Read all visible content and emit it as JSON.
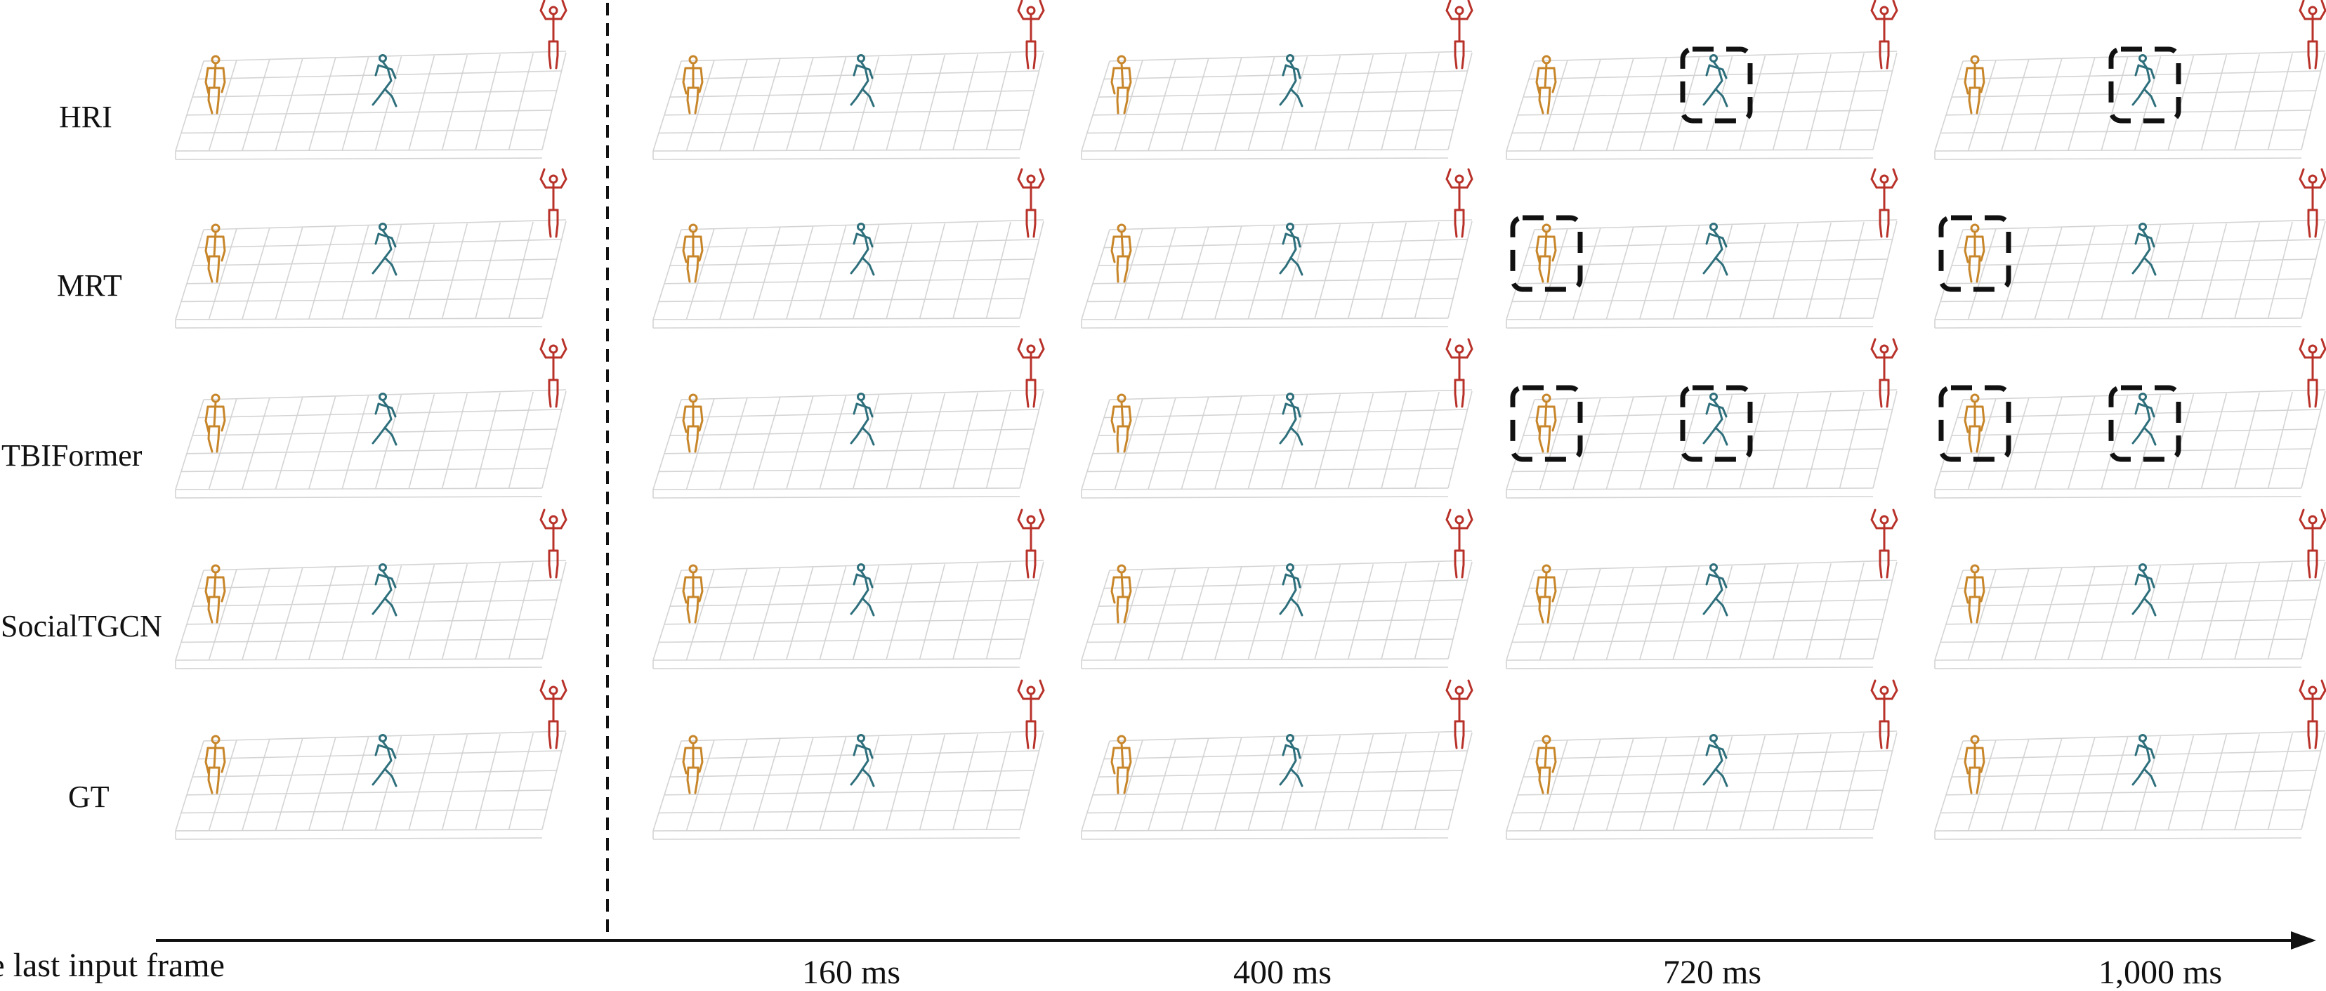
{
  "figure": {
    "rows": [
      {
        "label": "HRI",
        "highlights": [
          {
            "col": 3,
            "person": "blue"
          },
          {
            "col": 4,
            "person": "blue"
          }
        ]
      },
      {
        "label": "MRT",
        "highlights": [
          {
            "col": 3,
            "person": "orange"
          },
          {
            "col": 4,
            "person": "orange"
          }
        ]
      },
      {
        "label": "TBIFormer",
        "highlights": [
          {
            "col": 3,
            "person": "orange"
          },
          {
            "col": 3,
            "person": "blue"
          },
          {
            "col": 4,
            "person": "orange"
          },
          {
            "col": 4,
            "person": "blue"
          }
        ]
      },
      {
        "label": "SocialTGCN",
        "highlights": []
      },
      {
        "label": "GT",
        "highlights": []
      }
    ],
    "columns": [
      {
        "label": "The last input frame"
      },
      {
        "label": "160 ms"
      },
      {
        "label": "400 ms"
      },
      {
        "label": "720 ms"
      },
      {
        "label": "1,000 ms"
      }
    ],
    "people": [
      {
        "name": "orange",
        "color": "#c8862a"
      },
      {
        "name": "blue",
        "color": "#2e6f7c"
      },
      {
        "name": "red",
        "color": "#b8322a"
      }
    ],
    "colors": {
      "grid": "#d4d4d4",
      "highlight_box": "#111111",
      "axis": "#111111",
      "separator": "#111111"
    }
  }
}
